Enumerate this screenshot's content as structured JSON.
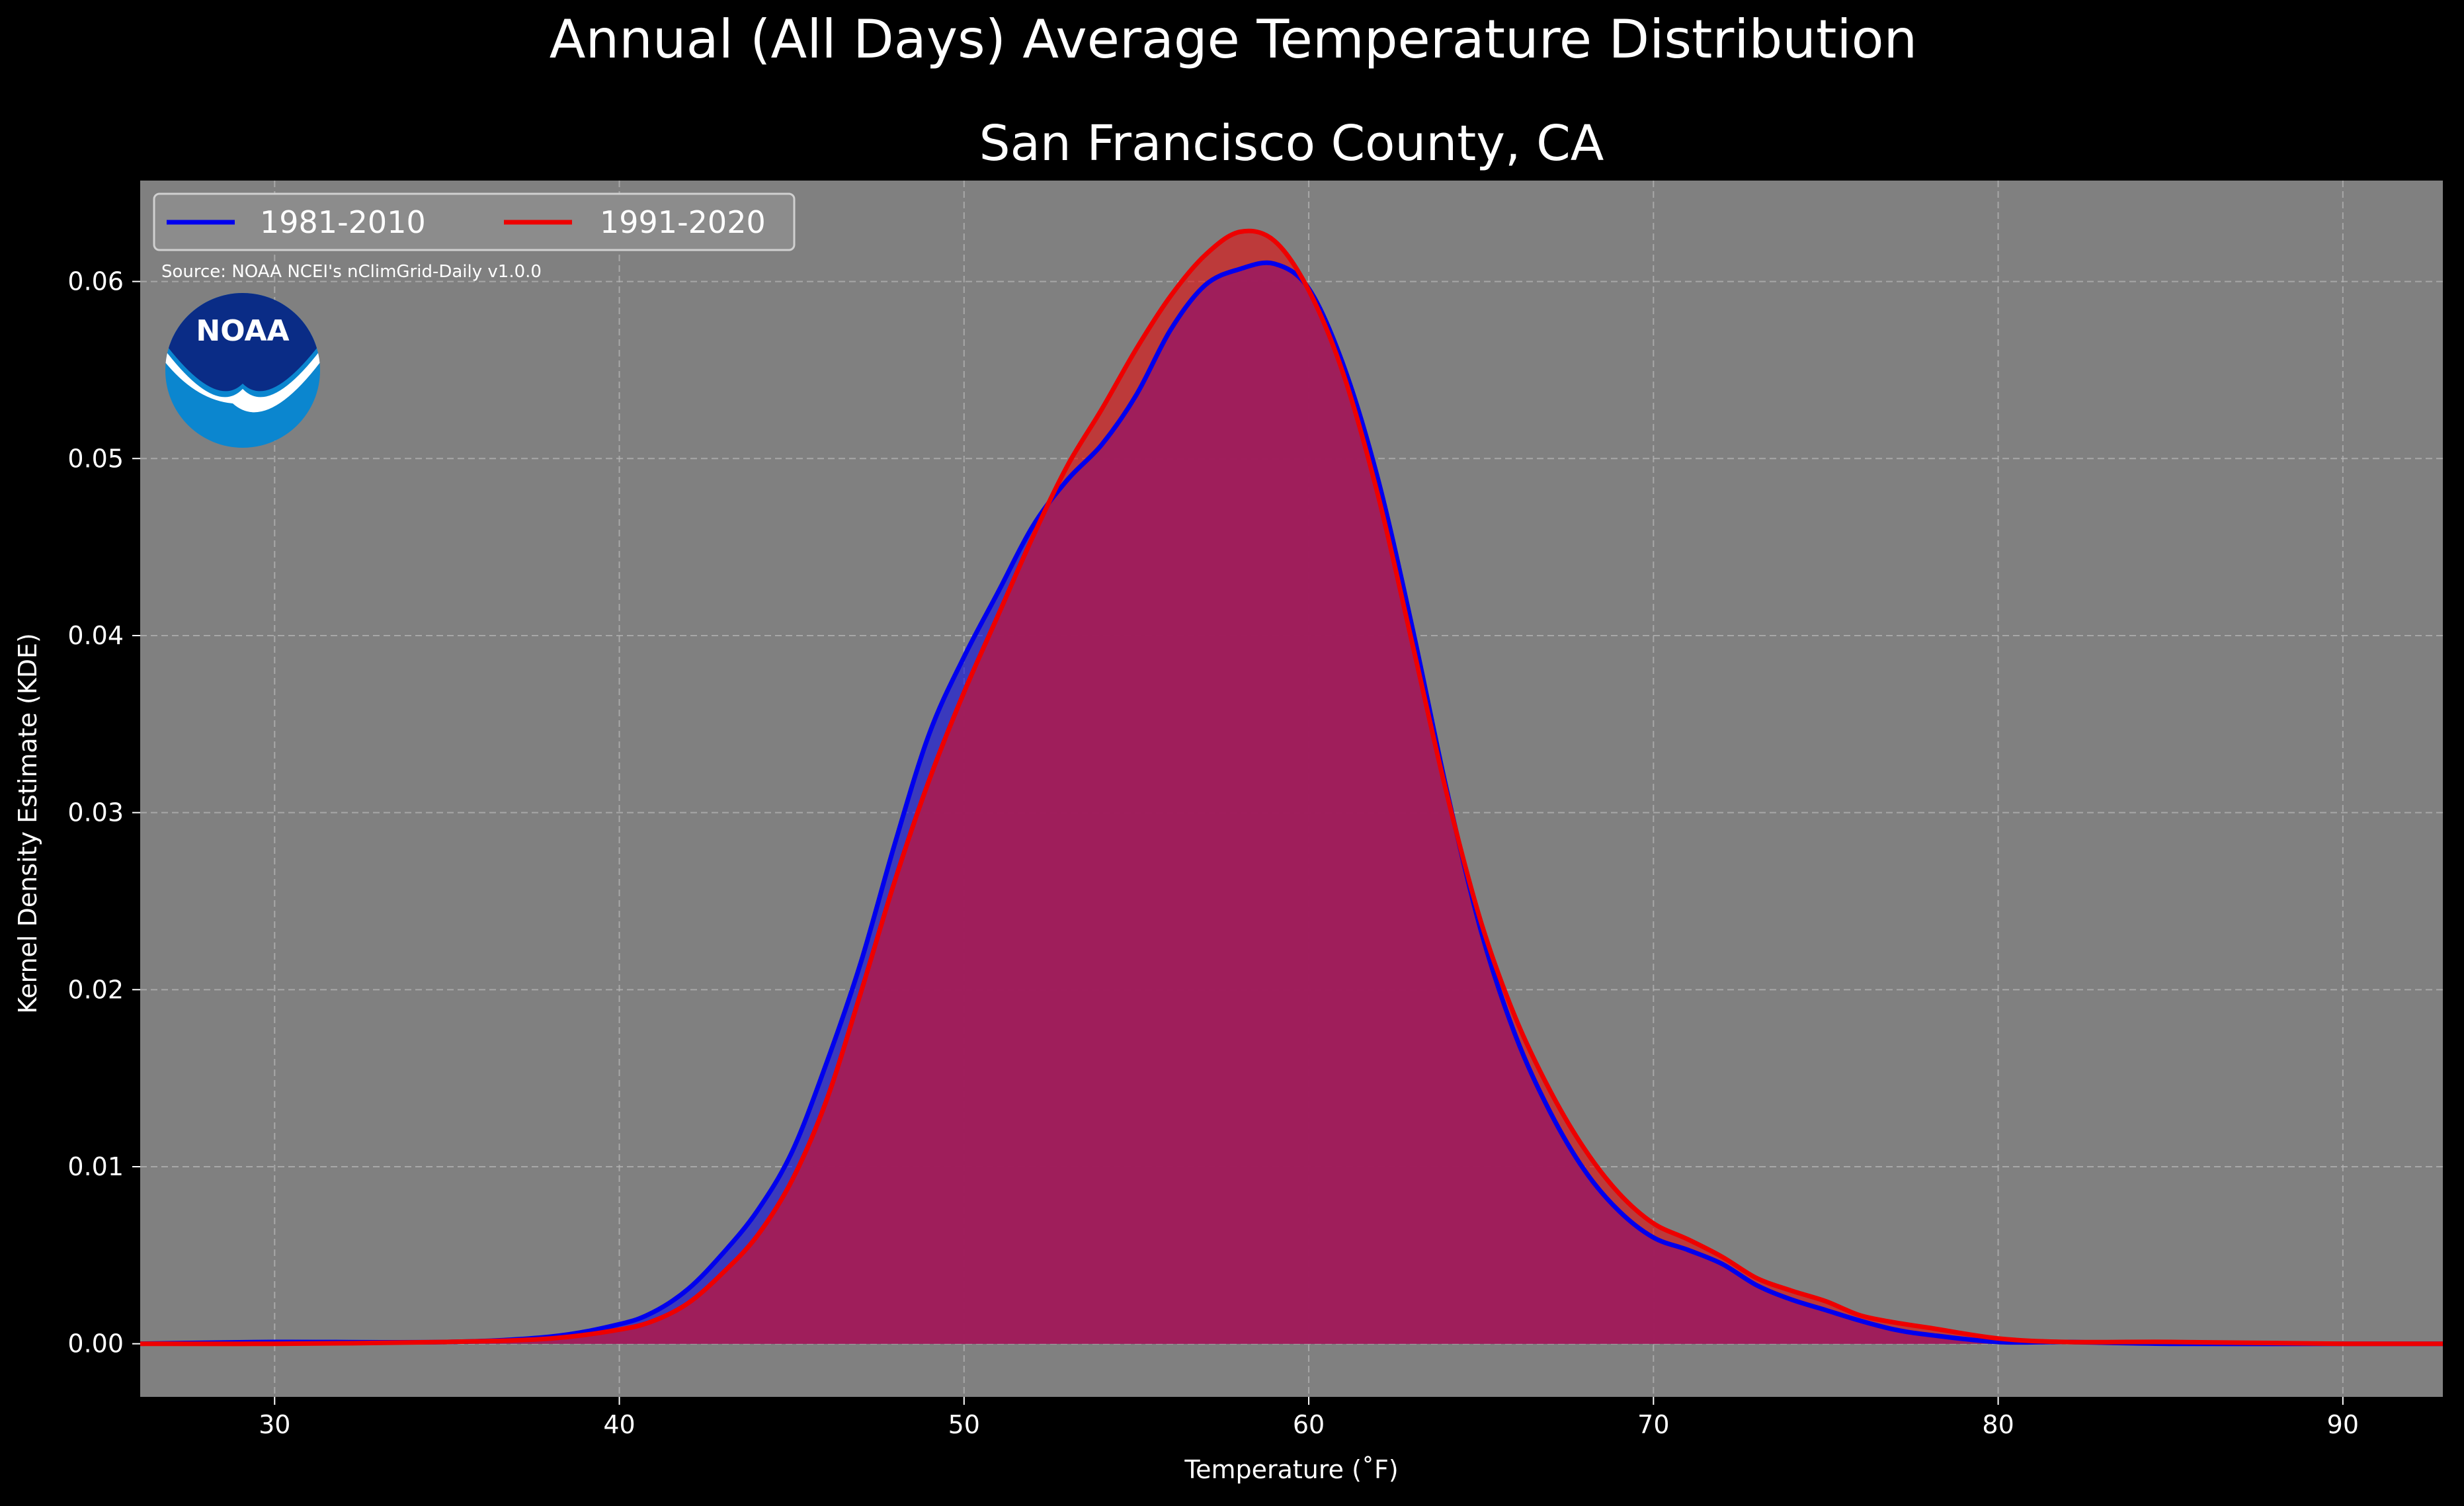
{
  "chart_data": {
    "type": "area",
    "title": "Annual (All Days) Average Temperature Distribution",
    "subtitle": "San Francisco County, CA",
    "xlabel": "Temperature (˚F)",
    "ylabel": "Kernel Density Estimate (KDE)",
    "source": "Source: NOAA NCEI's nClimGrid-Daily v1.0.0",
    "logo_text": "NOAA",
    "xlim": [
      26.1,
      92.9
    ],
    "ylim": [
      -0.003,
      0.0657
    ],
    "xticks": [
      30,
      40,
      50,
      60,
      70,
      80,
      90
    ],
    "yticks": [
      0.0,
      0.01,
      0.02,
      0.03,
      0.04,
      0.05,
      0.06
    ],
    "xtick_labels": [
      "30",
      "40",
      "50",
      "60",
      "70",
      "80",
      "90"
    ],
    "ytick_labels": [
      "0.00",
      "0.01",
      "0.02",
      "0.03",
      "0.04",
      "0.05",
      "0.06"
    ],
    "grid": true,
    "legend_position": "top-left",
    "colors": {
      "figure_background": "#000000",
      "plot_background": "#808080",
      "grid": "#b8b8b8",
      "text": "#ffffff",
      "series_1981": "#0000ee",
      "series_1991": "#ee0000",
      "overlap_fill": "#a01e5c",
      "logo_dark": "#0a2c86",
      "logo_light": "#0b86cf"
    },
    "series": [
      {
        "name": "1981-2010",
        "color": "#0000ee",
        "x": [
          26,
          30,
          35,
          38,
          40,
          41,
          42,
          43,
          44,
          45,
          46,
          47,
          48,
          49,
          50,
          51,
          52,
          53,
          54,
          55,
          56,
          57,
          58,
          59,
          60,
          61,
          62,
          63,
          64,
          65,
          66,
          67,
          68,
          69,
          70,
          71,
          72,
          73,
          74,
          75,
          76,
          77,
          78,
          80,
          82,
          85,
          90,
          93
        ],
        "values": [
          0.0,
          0.0001,
          0.0001,
          0.0004,
          0.0011,
          0.0018,
          0.0031,
          0.0051,
          0.0075,
          0.0108,
          0.0158,
          0.0215,
          0.0283,
          0.0345,
          0.0388,
          0.0425,
          0.0462,
          0.0488,
          0.0508,
          0.0536,
          0.0573,
          0.0598,
          0.0607,
          0.061,
          0.0596,
          0.0553,
          0.0489,
          0.0405,
          0.0313,
          0.0233,
          0.0174,
          0.0131,
          0.0098,
          0.0075,
          0.006,
          0.0053,
          0.0045,
          0.0033,
          0.0025,
          0.0019,
          0.0013,
          0.0008,
          0.0005,
          0.0001,
          0.0001,
          0.0,
          0.0,
          0.0
        ]
      },
      {
        "name": "1991-2020",
        "color": "#ee0000",
        "x": [
          26,
          30,
          35,
          38,
          40,
          41,
          42,
          43,
          44,
          45,
          46,
          47,
          48,
          49,
          50,
          51,
          52,
          53,
          54,
          55,
          56,
          57,
          58,
          59,
          60,
          61,
          62,
          63,
          64,
          65,
          66,
          67,
          68,
          69,
          70,
          71,
          72,
          73,
          74,
          75,
          76,
          77,
          78,
          80,
          82,
          85,
          90,
          93
        ],
        "values": [
          0.0,
          0.0,
          0.0001,
          0.0003,
          0.0008,
          0.0013,
          0.0023,
          0.004,
          0.0061,
          0.0092,
          0.0137,
          0.0198,
          0.0262,
          0.0319,
          0.0368,
          0.0412,
          0.0456,
          0.0496,
          0.0528,
          0.0562,
          0.0592,
          0.0615,
          0.0628,
          0.0623,
          0.0595,
          0.0548,
          0.048,
          0.0396,
          0.0311,
          0.0238,
          0.0184,
          0.0143,
          0.011,
          0.0085,
          0.0068,
          0.0059,
          0.0049,
          0.0037,
          0.003,
          0.0024,
          0.0016,
          0.0012,
          0.0009,
          0.0003,
          0.0001,
          0.0001,
          0.0,
          0.0
        ]
      }
    ]
  }
}
